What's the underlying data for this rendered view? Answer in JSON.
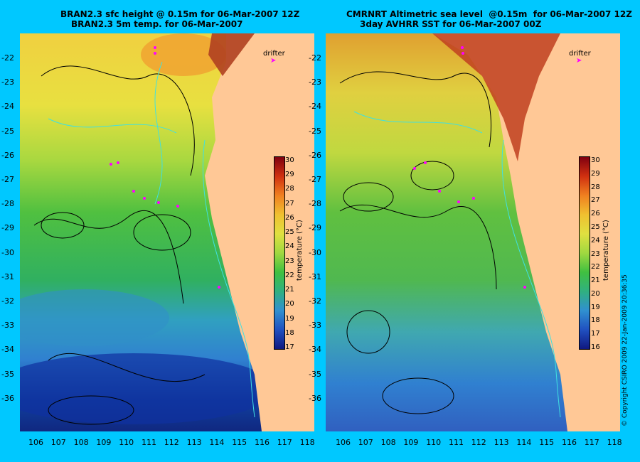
{
  "left_panel": {
    "title_line1": "BRAN2.3 sfc height @ 0.15m for 06-Mar-2007 12Z",
    "title_line2": "BRAN2.3 5m temp. for 06-Mar-2007",
    "colorbar_ticks": [
      "30",
      "29",
      "28",
      "27",
      "26",
      "25",
      "24",
      "23",
      "22",
      "21",
      "20",
      "19",
      "18",
      "17"
    ],
    "colorbar_title": "temperature (°C)"
  },
  "right_panel": {
    "title_line1": "CMRNRT Altimetric sea level  @0.15m  for 06-Mar-2007 12Z",
    "title_line2": "3day AVHRR SST for 06-Mar-2007 00Z",
    "colorbar_ticks": [
      "30",
      "29",
      "28",
      "27",
      "26",
      "25",
      "24",
      "23",
      "22",
      "21",
      "20",
      "19",
      "18",
      "17",
      "16"
    ],
    "colorbar_title": "temperature (°C)"
  },
  "y_axis_labels": [
    "-22",
    "-23",
    "-24",
    "-25",
    "-26",
    "-27",
    "-28",
    "-29",
    "-30",
    "-31",
    "-32",
    "-33",
    "-34",
    "-35",
    "-36"
  ],
  "x_axis_labels": [
    "106",
    "107",
    "108",
    "109",
    "110",
    "111",
    "112",
    "113",
    "114",
    "115",
    "116",
    "117",
    "118"
  ],
  "drifter_label": "drifter",
  "copyright": "© Copyright CSIRO 2009   22-Jan-2009 20:36:35",
  "colors": {
    "background": "#00c8ff",
    "land": "#ffc896",
    "drifter": "#ff00ff"
  }
}
